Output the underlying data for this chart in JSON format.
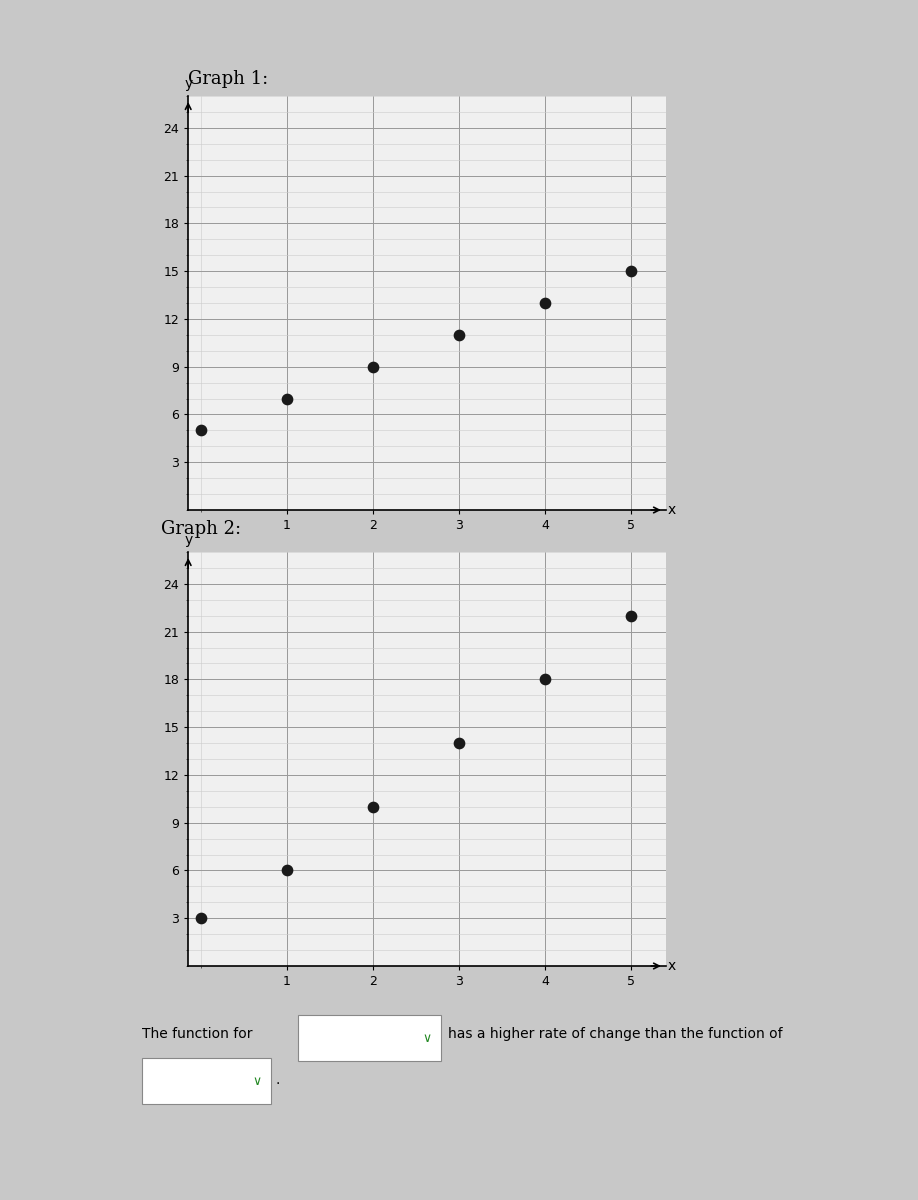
{
  "graph1_title": "Graph 1:",
  "graph2_title": "Graph 2:",
  "graph1_x": [
    0,
    1,
    2,
    3,
    4,
    5
  ],
  "graph1_y": [
    5,
    7,
    9,
    11,
    13,
    15
  ],
  "graph2_x": [
    0,
    1,
    2,
    3,
    4,
    5
  ],
  "graph2_y": [
    3,
    6,
    10,
    14,
    18,
    22
  ],
  "dot_color": "#1a1a1a",
  "dot_size": 55,
  "ylim": [
    0,
    26
  ],
  "xlim": [
    -0.15,
    5.4
  ],
  "yticks": [
    3,
    6,
    9,
    12,
    15,
    18,
    21,
    24
  ],
  "xticks": [
    1,
    2,
    3,
    4,
    5
  ],
  "minor_yticks_step": 1,
  "grid_major_color": "#999999",
  "grid_minor_color": "#cccccc",
  "grid_linewidth_major": 0.7,
  "grid_linewidth_minor": 0.4,
  "bg_color": "#c8c8c8",
  "plot_bg_color": "#f0f0f0",
  "bottom_text": "The function for",
  "bottom_text2": "has a higher rate of change than the function of",
  "font_size_title": 13,
  "font_size_labels": 10,
  "font_size_ticks": 9,
  "font_size_bottom": 10
}
